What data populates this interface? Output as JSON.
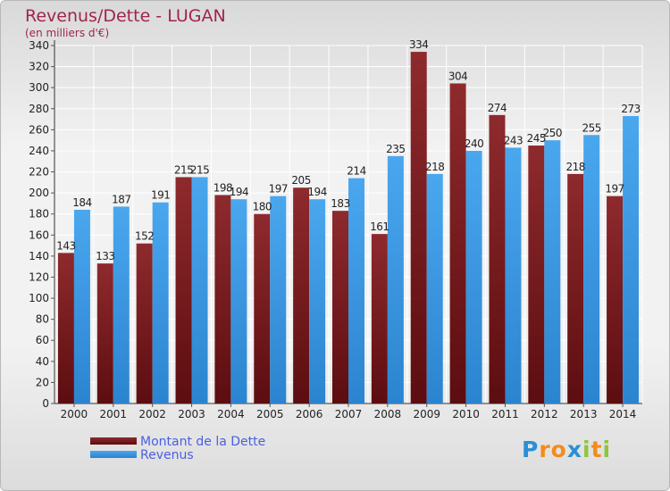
{
  "title": "Revenus/Dette - LUGAN",
  "subtitle": "(en milliers d'€)",
  "colors": {
    "dette": "#7a1f22",
    "revenus": "#3c9be8",
    "axis_text": "#222222",
    "title": "#a0254a",
    "legend_text": "#4a5fe0"
  },
  "chart_data": {
    "type": "bar",
    "title": "Revenus/Dette - LUGAN",
    "subtitle": "(en milliers d'€)",
    "xlabel": "",
    "ylabel": "",
    "ylim": [
      0,
      340
    ],
    "yticks": [
      0,
      20,
      40,
      60,
      80,
      100,
      120,
      140,
      160,
      180,
      200,
      220,
      240,
      260,
      280,
      300,
      320,
      340
    ],
    "grid": true,
    "legend_position": "bottom-left",
    "categories": [
      "2000",
      "2001",
      "2002",
      "2003",
      "2004",
      "2005",
      "2006",
      "2007",
      "2008",
      "2009",
      "2010",
      "2011",
      "2012",
      "2013",
      "2014"
    ],
    "series": [
      {
        "name": "Montant de la Dette",
        "values": [
          143,
          133,
          152,
          215,
          198,
          180,
          205,
          183,
          161,
          334,
          304,
          274,
          245,
          218,
          197
        ]
      },
      {
        "name": "Revenus",
        "values": [
          184,
          187,
          191,
          215,
          194,
          197,
          194,
          214,
          235,
          218,
          240,
          243,
          250,
          255,
          273
        ]
      }
    ]
  },
  "legend": {
    "dette_label": "Montant de la Dette",
    "revenus_label": "Revenus"
  },
  "logo": {
    "text": "Proxiti",
    "letters": [
      "P",
      "r",
      "o",
      "x",
      "i",
      "t",
      "i"
    ],
    "letter_colors": [
      "#2a8fd6",
      "#f28c1e",
      "#f28c1e",
      "#2a8fd6",
      "#8cc63f",
      "#f28c1e",
      "#8cc63f"
    ]
  }
}
